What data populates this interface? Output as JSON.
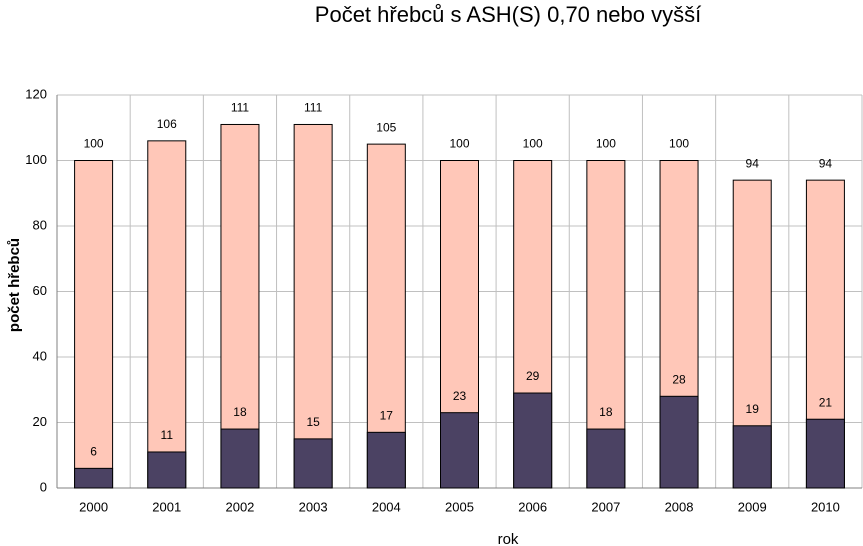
{
  "chart_data": {
    "type": "bar",
    "title": "Počet hřebců s ASH(S) 0,70 nebo vyšší",
    "xlabel": "rok",
    "ylabel": "počet hřebců",
    "categories": [
      "2000",
      "2001",
      "2002",
      "2003",
      "2004",
      "2005",
      "2006",
      "2007",
      "2008",
      "2009",
      "2010"
    ],
    "series": [
      {
        "color": "#ffc7b8",
        "values": [
          100,
          106,
          111,
          111,
          105,
          100,
          100,
          100,
          100,
          94,
          94
        ]
      },
      {
        "color": "#4b4263",
        "values": [
          6,
          11,
          18,
          15,
          17,
          23,
          29,
          18,
          28,
          19,
          21
        ]
      }
    ],
    "ylim": [
      0,
      120
    ],
    "yticks": [
      0,
      20,
      40,
      60,
      80,
      100,
      120
    ],
    "grid": true
  }
}
